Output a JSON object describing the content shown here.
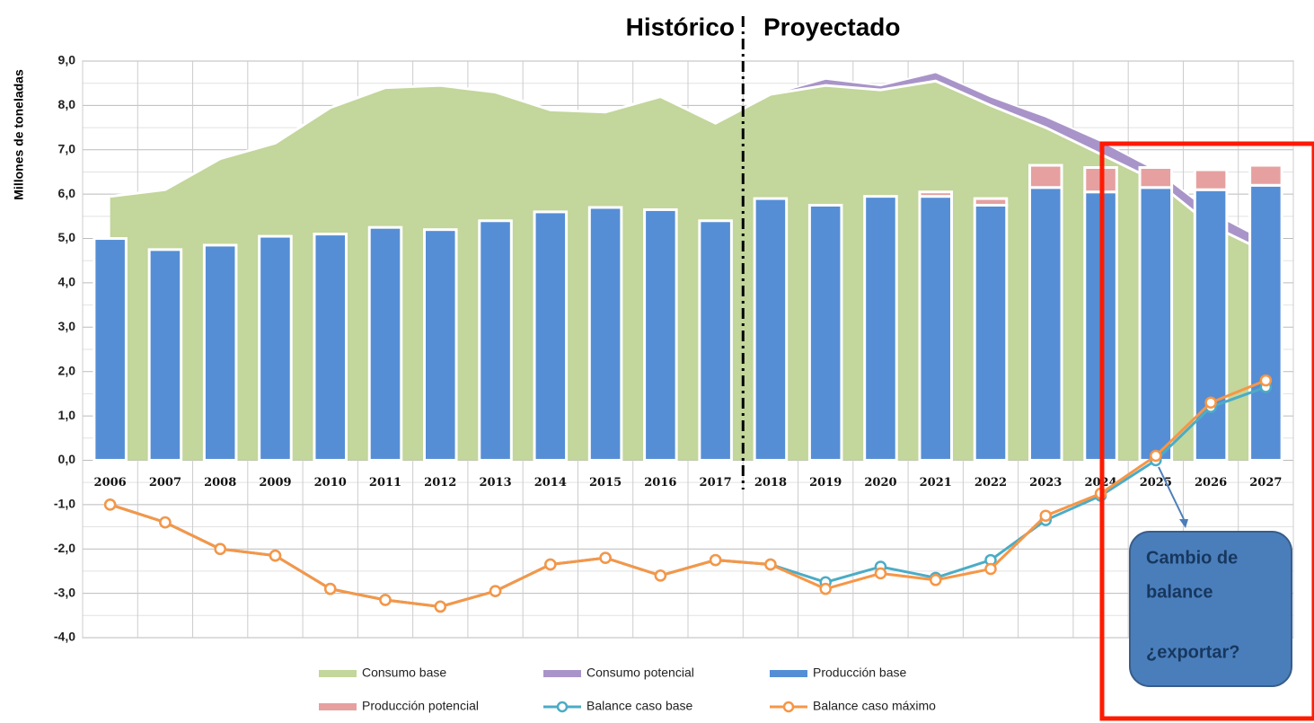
{
  "chart_data": {
    "type": "combo",
    "ylabel": "Millones de toneladas",
    "annotations": {
      "left": "Histórico",
      "right": "Proyectado",
      "callout": [
        "Cambio de",
        "balance",
        "¿exportar?"
      ]
    },
    "categories": [
      "2006",
      "2007",
      "2008",
      "2009",
      "2010",
      "2011",
      "2012",
      "2013",
      "2014",
      "2015",
      "2016",
      "2017",
      "2018",
      "2019",
      "2020",
      "2021",
      "2022",
      "2023",
      "2024",
      "2025",
      "2026",
      "2027"
    ],
    "ylim": [
      -4,
      9
    ],
    "yticks": [
      {
        "value": -4,
        "label": "-4,0"
      },
      {
        "value": -3,
        "label": "-3,0"
      },
      {
        "value": -2,
        "label": "-2,0"
      },
      {
        "value": -1,
        "label": "-1,0"
      },
      {
        "value": 0,
        "label": "0,0"
      },
      {
        "value": 1,
        "label": "1,0"
      },
      {
        "value": 2,
        "label": "2,0"
      },
      {
        "value": 3,
        "label": "3,0"
      },
      {
        "value": 4,
        "label": "4,0"
      },
      {
        "value": 5,
        "label": "5,0"
      },
      {
        "value": 6,
        "label": "6,0"
      },
      {
        "value": 7,
        "label": "7,0"
      },
      {
        "value": 8,
        "label": "8,0"
      },
      {
        "value": 9,
        "label": "9,0"
      }
    ],
    "grid": true,
    "series": [
      {
        "name": "Consumo base",
        "type": "area",
        "color": "#c3d69b",
        "values": [
          5.95,
          6.1,
          6.8,
          7.15,
          7.95,
          8.4,
          8.45,
          8.3,
          7.9,
          7.85,
          8.2,
          7.6,
          8.25,
          8.45,
          8.35,
          8.55,
          8.0,
          7.5,
          6.9,
          6.3,
          5.3,
          4.7
        ]
      },
      {
        "name": "Consumo potencial",
        "type": "area",
        "color": "#a994c9",
        "values": [
          null,
          null,
          null,
          null,
          null,
          null,
          null,
          null,
          null,
          null,
          null,
          null,
          8.25,
          8.6,
          8.45,
          8.75,
          8.2,
          7.75,
          7.2,
          6.55,
          5.6,
          4.95
        ]
      },
      {
        "name": "Producción base",
        "type": "bar",
        "color": "#558ed5",
        "values": [
          5.0,
          4.75,
          4.85,
          5.05,
          5.1,
          5.25,
          5.2,
          5.4,
          5.6,
          5.7,
          5.65,
          5.4,
          5.9,
          5.75,
          5.95,
          5.95,
          5.75,
          6.15,
          6.05,
          6.15,
          6.1,
          6.2
        ]
      },
      {
        "name": "Producción potencial",
        "type": "bar",
        "color": "#e6a0a0",
        "values": [
          0,
          0,
          0,
          0,
          0,
          0,
          0,
          0,
          0,
          0,
          0,
          0,
          0,
          0,
          0,
          0.1,
          0.15,
          0.5,
          0.55,
          0.45,
          0.45,
          0.45
        ]
      },
      {
        "name": "Balance caso base",
        "type": "line",
        "color": "#4bacc6",
        "values": [
          -1.0,
          -1.4,
          -2.0,
          -2.15,
          -2.9,
          -3.15,
          -3.3,
          -2.95,
          -2.35,
          -2.2,
          -2.6,
          -2.25,
          -2.35,
          -2.75,
          -2.4,
          -2.65,
          -2.25,
          -1.35,
          -0.8,
          0.0,
          1.2,
          1.65
        ]
      },
      {
        "name": "Balance caso máximo",
        "type": "line",
        "color": "#f79646",
        "values": [
          -1.0,
          -1.4,
          -2.0,
          -2.15,
          -2.9,
          -3.15,
          -3.3,
          -2.95,
          -2.35,
          -2.2,
          -2.6,
          -2.25,
          -2.35,
          -2.9,
          -2.55,
          -2.7,
          -2.45,
          -1.25,
          -0.75,
          0.1,
          1.3,
          1.8
        ]
      }
    ]
  }
}
